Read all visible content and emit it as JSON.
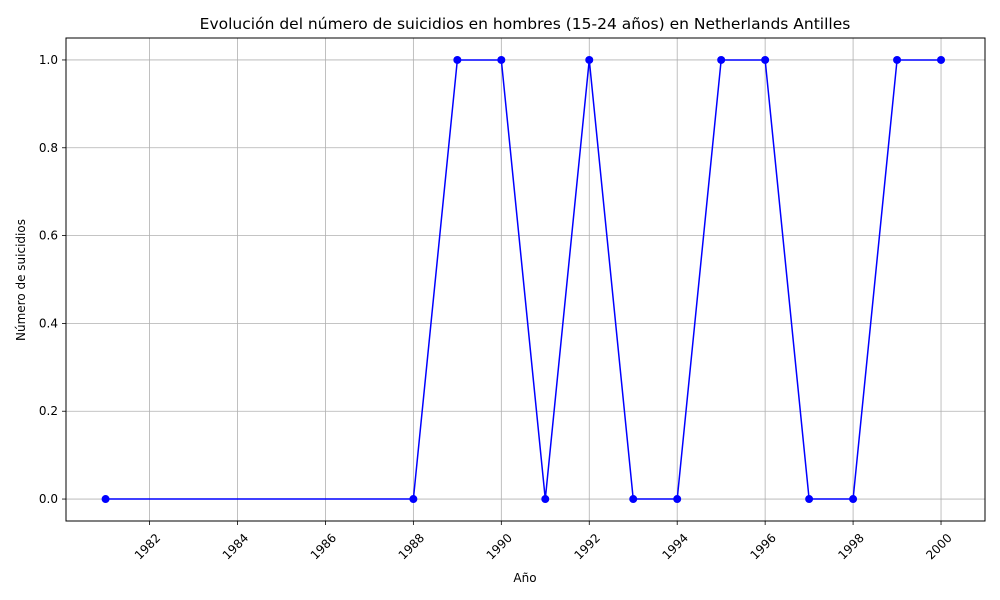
{
  "chart_data": {
    "type": "line",
    "title": "Evolución del número de suicidios en hombres (15-24 años) en Netherlands Antilles",
    "xlabel": "Año",
    "ylabel": "Número de suicidios",
    "x": [
      1981,
      1988,
      1989,
      1990,
      1991,
      1992,
      1993,
      1994,
      1995,
      1996,
      1997,
      1998,
      1999,
      2000
    ],
    "series": [
      {
        "values": [
          0,
          0,
          1,
          1,
          0,
          1,
          0,
          0,
          1,
          1,
          0,
          0,
          1,
          1
        ]
      }
    ],
    "x_ticks": [
      "1982",
      "1984",
      "1986",
      "1988",
      "1990",
      "1992",
      "1994",
      "1996",
      "1998",
      "2000"
    ],
    "y_ticks": [
      "0.0",
      "0.2",
      "0.4",
      "0.6",
      "0.8",
      "1.0"
    ],
    "xlim": [
      1980.1,
      2001
    ],
    "ylim": [
      -0.05,
      1.05
    ],
    "x_tick_rotation_deg": 45,
    "grid": true,
    "legend": false,
    "colors": {
      "line": "#0000ff",
      "marker": "#0000ff",
      "grid": "#b0b0b0",
      "axes": "#000000"
    },
    "marker": "circle"
  }
}
